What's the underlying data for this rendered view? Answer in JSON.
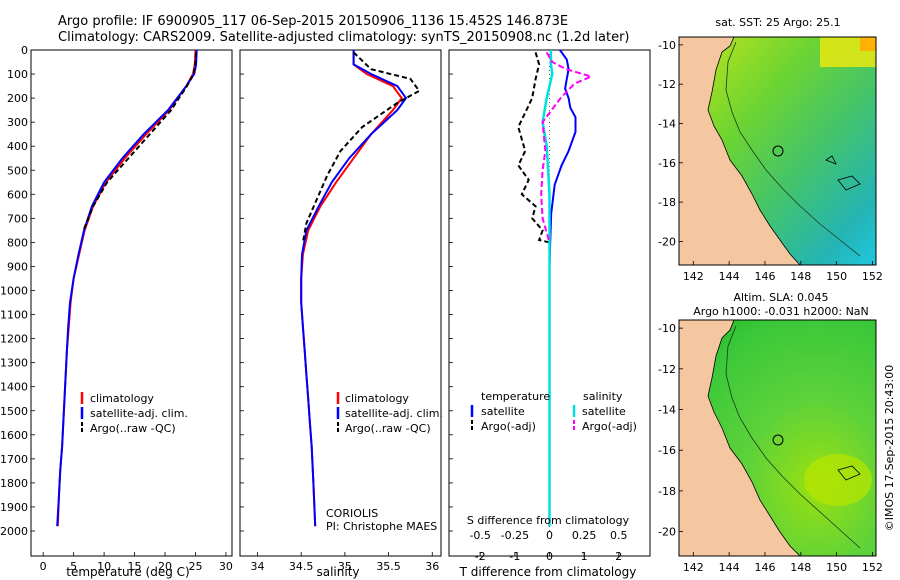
{
  "header": {
    "line1": "Argo profile: IF 6900905_117 06-Sep-2015 20150906_1136 15.452S 146.873E",
    "line2": "Climatology: CARS2009. Satellite-adjusted climatology: synTS_20150908.nc (1.2d later)"
  },
  "colors": {
    "climatology": "#ff0000",
    "satellite": "#0000ff",
    "argo": "#000000",
    "s_satellite": "#00e0e0",
    "s_argo": "#ff00ff",
    "land": "#f5c7a0"
  },
  "annotations": {
    "coriolis": "CORIOLIS",
    "pi": "PI: Christophe MAES",
    "map1_title": "sat. SST: 25 Argo: 25.1",
    "map2_title1": "Altim. SLA: 0.045",
    "map2_title2": "Argo h1000: -0.031 h2000: NaN",
    "credit": "©IMOS 17-Sep-2015 20:43:00"
  },
  "chart_data": [
    {
      "type": "line",
      "id": "temperature",
      "xlabel": "temperature (deg C)",
      "xlim": [
        -2,
        31
      ],
      "xticks": [
        0,
        5,
        10,
        15,
        20,
        25,
        30
      ],
      "ylim": [
        2000,
        0
      ],
      "ylabel": "",
      "yticks": [
        0,
        100,
        200,
        300,
        400,
        500,
        600,
        700,
        800,
        900,
        1000,
        1100,
        1200,
        1300,
        1400,
        1500,
        1600,
        1700,
        1800,
        1900,
        2000
      ],
      "legend": [
        "climatology",
        "satellite-adj. clim.",
        "Argo(..raw -QC)"
      ],
      "series": [
        {
          "name": "climatology",
          "x": [
            25.0,
            24.9,
            24.6,
            23.5,
            20.7,
            16.9,
            13.4,
            10.3,
            8.2,
            6.8,
            5.9,
            5.0,
            4.5,
            4.2,
            3.9,
            3.7,
            3.5,
            3.3,
            3.1,
            2.8,
            2.6,
            2.4
          ],
          "y": [
            0,
            60,
            100,
            150,
            250,
            350,
            450,
            550,
            650,
            750,
            850,
            950,
            1050,
            1150,
            1250,
            1350,
            1450,
            1550,
            1650,
            1750,
            1850,
            1980
          ]
        },
        {
          "name": "satellite-adj. clim.",
          "x": [
            25.2,
            25.1,
            24.8,
            23.5,
            20.5,
            16.5,
            13.0,
            10.0,
            8.0,
            6.7,
            5.8,
            5.0,
            4.4,
            4.1,
            3.9,
            3.7,
            3.5,
            3.3,
            3.1,
            2.8,
            2.6,
            2.3
          ],
          "y": [
            0,
            60,
            100,
            150,
            250,
            350,
            450,
            550,
            650,
            750,
            850,
            950,
            1050,
            1150,
            1250,
            1350,
            1450,
            1550,
            1650,
            1750,
            1850,
            1980
          ]
        },
        {
          "name": "Argo(..raw -QC)",
          "x": [
            25.1,
            25.0,
            24.7,
            23.6,
            21.0,
            17.5,
            14.0,
            10.5,
            8.2,
            6.6
          ],
          "y": [
            10,
            50,
            100,
            150,
            250,
            350,
            450,
            550,
            650,
            750
          ]
        }
      ]
    },
    {
      "type": "line",
      "id": "salinity",
      "xlabel": "salinity",
      "xlim": [
        33.8,
        36.1
      ],
      "xticks": [
        34,
        34.5,
        35,
        35.5,
        36
      ],
      "ylim": [
        2000,
        0
      ],
      "legend": [
        "climatology",
        "satellite-adj. clim.",
        "Argo(..raw -QC)"
      ],
      "series": [
        {
          "name": "climatology",
          "x": [
            35.1,
            35.1,
            35.25,
            35.55,
            35.65,
            35.55,
            35.3,
            35.1,
            34.9,
            34.72,
            34.58,
            34.52,
            34.5,
            34.5,
            34.52,
            34.54,
            34.56,
            34.58,
            34.6,
            34.62,
            34.64,
            34.66
          ],
          "y": [
            0,
            60,
            100,
            150,
            200,
            250,
            350,
            450,
            550,
            650,
            750,
            850,
            950,
            1050,
            1150,
            1250,
            1350,
            1450,
            1550,
            1650,
            1800,
            1980
          ]
        },
        {
          "name": "satellite-adj. clim.",
          "x": [
            35.1,
            35.1,
            35.3,
            35.6,
            35.7,
            35.6,
            35.3,
            35.05,
            34.85,
            34.7,
            34.56,
            34.51,
            34.5,
            34.5,
            34.52,
            34.54,
            34.56,
            34.58,
            34.6,
            34.62,
            34.64,
            34.66
          ],
          "y": [
            0,
            60,
            100,
            150,
            200,
            250,
            350,
            450,
            550,
            650,
            750,
            850,
            950,
            1050,
            1150,
            1250,
            1350,
            1450,
            1550,
            1650,
            1800,
            1980
          ]
        },
        {
          "name": "Argo(..raw -QC)",
          "x": [
            35.1,
            35.3,
            35.75,
            35.85,
            35.6,
            35.2,
            34.95,
            34.8,
            34.68,
            34.56,
            34.52
          ],
          "y": [
            10,
            80,
            120,
            170,
            220,
            320,
            420,
            520,
            620,
            720,
            800
          ]
        }
      ]
    },
    {
      "type": "line",
      "id": "differences",
      "xlabel": "T difference from climatology",
      "xlabel_top": "S difference from climatology",
      "xlim": [
        -2.9,
        2.9
      ],
      "xticks": [
        -2,
        -1,
        0,
        1,
        2
      ],
      "xticks_s": [
        -0.5,
        -0.25,
        0,
        0.25,
        0.5
      ],
      "ylim": [
        2000,
        0
      ],
      "legend_titles": [
        "temperature",
        "salinity"
      ],
      "legend": [
        "satellite",
        "Argo(-adj)",
        "satellite",
        "Argo(-adj)"
      ],
      "series": [
        {
          "name": "T satellite",
          "x": [
            0.3,
            0.5,
            0.55,
            0.5,
            0.45,
            0.55,
            0.6,
            0.75,
            0.75,
            0.55,
            0.35,
            0.15,
            0.05,
            0.02,
            0.0,
            0.0,
            0.0,
            0.0,
            0.0,
            0.0,
            0.0
          ],
          "y": [
            0,
            40,
            80,
            120,
            160,
            200,
            240,
            280,
            340,
            420,
            480,
            560,
            680,
            800,
            900,
            1100,
            1300,
            1500,
            1700,
            1850,
            1980
          ]
        },
        {
          "name": "T Argo(-adj)",
          "x": [
            -0.4,
            -0.3,
            -0.4,
            -0.5,
            -0.9,
            -0.7,
            -0.9,
            -0.6,
            -0.8,
            -0.4,
            -0.5,
            -0.2,
            -0.3,
            0.0
          ],
          "y": [
            10,
            60,
            120,
            200,
            320,
            420,
            480,
            540,
            600,
            650,
            700,
            750,
            790,
            800
          ]
        },
        {
          "name": "S satellite",
          "x": [
            0.01,
            0.01,
            0.02,
            0.0,
            -0.02,
            -0.05,
            -0.02,
            0.0,
            0.0,
            0.0,
            0.0,
            0.0
          ],
          "y": [
            0,
            60,
            100,
            150,
            200,
            300,
            400,
            600,
            800,
            1200,
            1600,
            1980
          ]
        },
        {
          "name": "S Argo(-adj)",
          "x": [
            -0.02,
            0.02,
            0.12,
            0.3,
            0.18,
            0.08,
            -0.05,
            -0.03,
            -0.05,
            -0.06,
            -0.05,
            0.0
          ],
          "y": [
            10,
            50,
            80,
            110,
            140,
            200,
            300,
            420,
            500,
            600,
            700,
            800
          ]
        }
      ]
    },
    {
      "type": "heatmap",
      "id": "map_sst",
      "title": "sat. SST: 25 Argo: 25.1",
      "xticks": [
        142,
        144,
        146,
        148,
        150,
        152
      ],
      "yticks": [
        -10,
        -12,
        -14,
        -16,
        -18,
        -20
      ],
      "xlim": [
        141.2,
        152.2
      ],
      "ylim": [
        -21.2,
        -9.6
      ],
      "argo_marker": [
        146.873,
        -15.452
      ]
    },
    {
      "type": "heatmap",
      "id": "map_sla",
      "title": "Altim. SLA: 0.045",
      "subtitle": "Argo h1000: -0.031 h2000: NaN",
      "xticks": [
        142,
        144,
        146,
        148,
        150,
        152
      ],
      "yticks": [
        -10,
        -12,
        -14,
        -16,
        -18,
        -20
      ],
      "xlim": [
        141.2,
        152.2
      ],
      "ylim": [
        -21.2,
        -9.6
      ],
      "argo_marker": [
        146.873,
        -15.452
      ]
    }
  ]
}
